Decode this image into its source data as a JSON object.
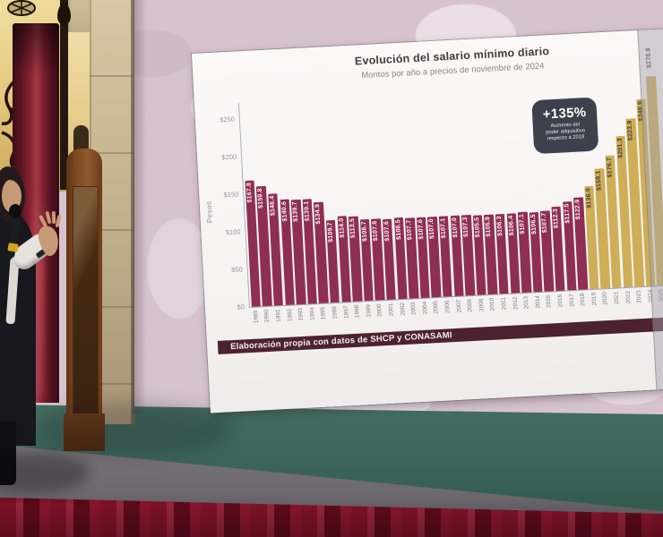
{
  "slide": {
    "title": "Evolución del salario mínimo diario",
    "subtitle": "Montos por año a precios de noviembre de 2024",
    "badge": {
      "headline": "+135%",
      "line1": "Aumento del",
      "line2": "poder adquisitivo",
      "line3": "respecto a 2018"
    },
    "y_axis_label": "Pesos",
    "footer": "Elaboración propia con datos de SHCP y CONASAMI"
  },
  "chart_data": {
    "type": "bar",
    "title": "Evolución del salario mínimo diario",
    "subtitle": "Montos por año a precios de noviembre de 2024",
    "ylabel": "Pesos",
    "ylim": [
      0,
      290
    ],
    "yticks": [
      0,
      50,
      100,
      150,
      200,
      250
    ],
    "tick_prefix": "$",
    "value_prefix": "$",
    "grid": false,
    "legend": "none",
    "annotation": "+135% Aumento del poder adquisitivo respecto a 2018",
    "categories": [
      1989,
      1990,
      1991,
      1992,
      1993,
      1994,
      1995,
      1996,
      1997,
      1998,
      1999,
      2000,
      2001,
      2002,
      2003,
      2004,
      2005,
      2006,
      2007,
      2008,
      2009,
      2010,
      2011,
      2012,
      2013,
      2014,
      2015,
      2016,
      2017,
      2018,
      2019,
      2020,
      2021,
      2022,
      2023,
      2024,
      2025
    ],
    "values": [
      167.8,
      159.8,
      148.4,
      140.6,
      139.7,
      139.1,
      134.9,
      109.7,
      114.0,
      113.5,
      108.7,
      107.8,
      107.6,
      108.5,
      107.7,
      107.6,
      107.0,
      107.1,
      107.0,
      107.3,
      105.5,
      105.9,
      106.3,
      106.4,
      107.1,
      106.5,
      107.7,
      112.3,
      117.5,
      122.9,
      136.9,
      159.1,
      176.7,
      201.3,
      223.9,
      248.9,
      278.8
    ],
    "highlight_from_year": 2019,
    "colors": {
      "bar_default": "#8e2e52",
      "bar_highlight": "#cfae58",
      "badge_bg": "#3c414b",
      "footer_bg": "#4d2230"
    }
  }
}
